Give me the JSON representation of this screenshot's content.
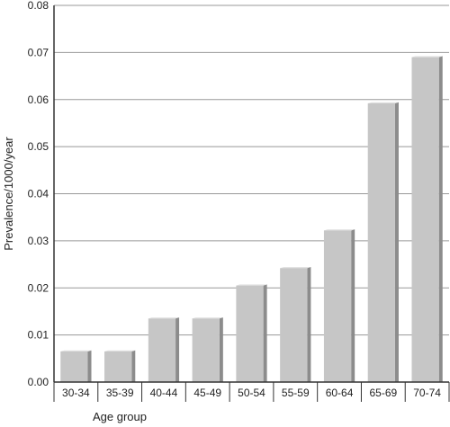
{
  "chart_data": {
    "type": "bar",
    "title": "",
    "xlabel": "Age group",
    "ylabel": "Prevalence/1000/year",
    "categories": [
      "30-34",
      "35-39",
      "40-44",
      "45-49",
      "50-54",
      "55-59",
      "60-64",
      "65-69",
      "70-74"
    ],
    "values": [
      0.0065,
      0.0065,
      0.0135,
      0.0135,
      0.0205,
      0.0242,
      0.0322,
      0.0592,
      0.069
    ],
    "ylim": [
      0,
      0.08
    ],
    "yticks": [
      "0.00",
      "0.01",
      "0.02",
      "0.03",
      "0.04",
      "0.05",
      "0.06",
      "0.07",
      "0.08"
    ],
    "grid": true,
    "legend": "none",
    "colors": {
      "bar_face": "#c6c6c6",
      "bar_side": "#8c8c8c",
      "bar_top": "#e2e2e2",
      "grid": "#999999",
      "axis": "#333333"
    }
  }
}
